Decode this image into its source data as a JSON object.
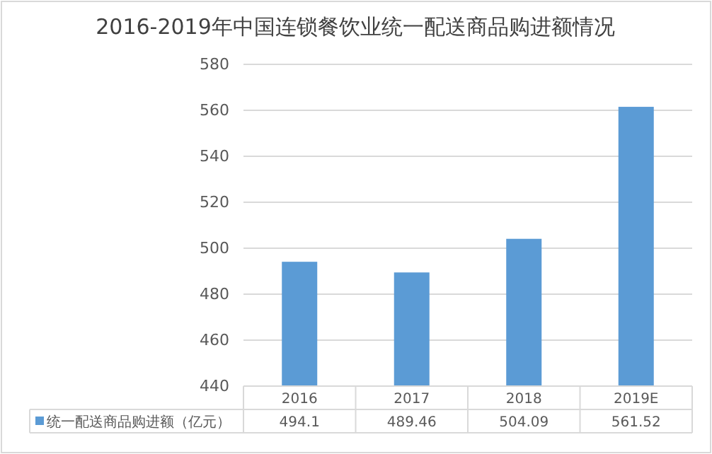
{
  "chart_data": {
    "type": "bar",
    "title": "2016-2019年中国连锁餐饮业统一配送商品购进额情况",
    "categories": [
      "2016",
      "2017",
      "2018",
      "2019E"
    ],
    "series": [
      {
        "name": "统一配送商品购进额（亿元）",
        "color": "#5b9bd5",
        "values": [
          494.1,
          489.46,
          504.09,
          561.52
        ]
      }
    ],
    "ylim": [
      440,
      580
    ],
    "yticks": [
      440,
      460,
      480,
      500,
      520,
      540,
      560,
      580
    ],
    "grid": "y",
    "data_labels": true,
    "legend": "bottom"
  }
}
